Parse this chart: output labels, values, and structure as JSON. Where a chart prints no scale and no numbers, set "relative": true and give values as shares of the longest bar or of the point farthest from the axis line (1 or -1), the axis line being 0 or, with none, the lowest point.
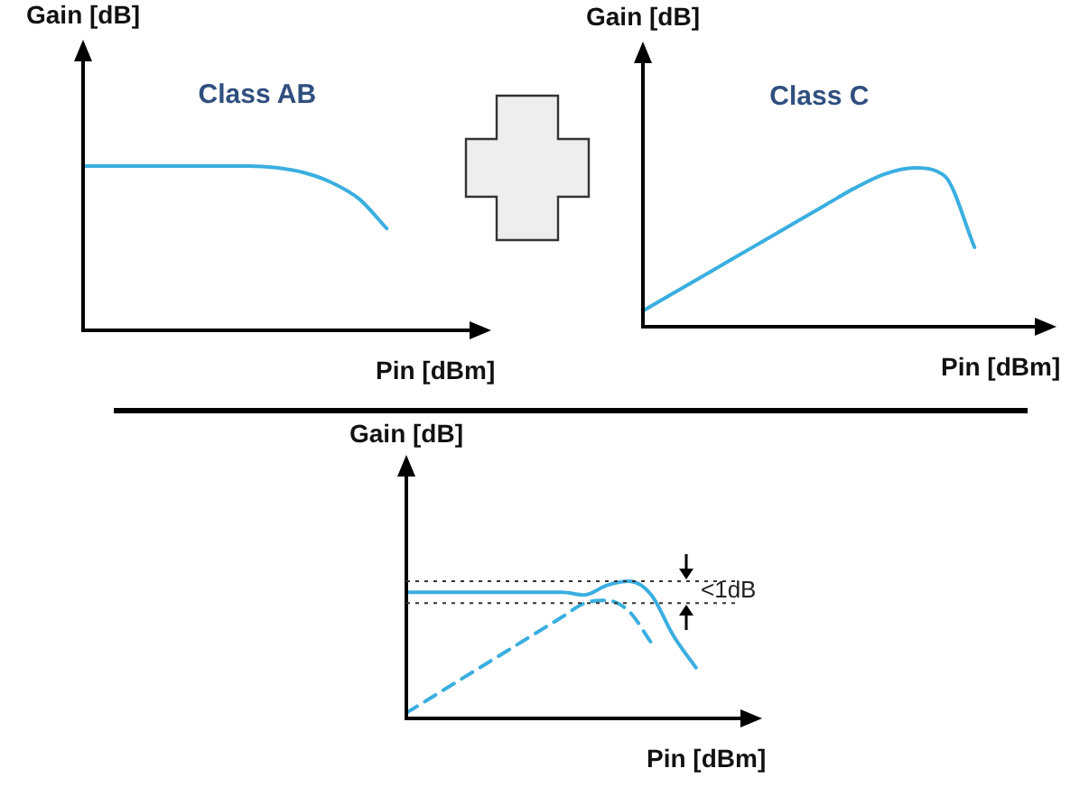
{
  "chart_data": [
    {
      "type": "line",
      "relative": true,
      "xlabel": "Pin [dBm]",
      "ylabel": "Gain [dB]",
      "annotations": [
        "Class AB"
      ],
      "legend": false,
      "grid": false,
      "marker": "none",
      "categories": [
        null,
        null,
        null,
        null,
        null,
        null,
        null,
        null,
        null,
        null,
        null,
        null,
        null,
        null,
        null
      ],
      "series": [
        {
          "color": "#3aaee0",
          "line_style": "solid",
          "values": [
            1,
            1,
            1,
            1,
            1,
            1,
            1,
            0.99,
            0.96,
            0.9,
            0.8,
            0.62,
            null,
            null,
            null
          ]
        }
      ]
    },
    {
      "type": "line",
      "relative": true,
      "xlabel": "Pin [dBm]",
      "ylabel": "Gain [dB]",
      "annotations": [
        "Class C"
      ],
      "legend": false,
      "grid": false,
      "marker": "none",
      "categories": [
        null,
        null,
        null,
        null,
        null,
        null,
        null,
        null,
        null,
        null,
        null,
        null,
        null,
        null
      ],
      "series": [
        {
          "color": "#3aaee0",
          "line_style": "solid",
          "values": [
            0.1,
            0.21,
            0.32,
            0.43,
            0.54,
            0.65,
            0.76,
            0.87,
            0.96,
            1,
            0.95,
            0.5,
            null,
            null
          ]
        }
      ]
    },
    {
      "type": "line",
      "relative": true,
      "xlabel": "Pin [dBm]",
      "ylabel": "Gain [dB]",
      "annotations": [
        "<1dB"
      ],
      "legend": false,
      "grid": false,
      "marker": "none",
      "categories": [
        null,
        null,
        null,
        null,
        null,
        null,
        null,
        null,
        null,
        null,
        null,
        null,
        null,
        null,
        null,
        null
      ],
      "ref_lines": [
        {
          "axis": "y",
          "value": 1,
          "color": "#333333",
          "line_style": "dotted"
        },
        {
          "axis": "y",
          "value": 0.84,
          "color": "#333333",
          "line_style": "dotted"
        }
      ],
      "series": [
        {
          "color": "#3aaee0",
          "line_style": "solid",
          "values": [
            0.92,
            0.92,
            0.92,
            0.92,
            0.92,
            0.92,
            0.92,
            0.92,
            0.9,
            0.97,
            1,
            0.9,
            0.6,
            0.37,
            null,
            null
          ]
        },
        {
          "color": "#3aaee0",
          "line_style": "dashed",
          "values": [
            0.04,
            0.14,
            0.24,
            0.34,
            0.44,
            0.54,
            0.64,
            0.74,
            0.84,
            0.86,
            0.78,
            0.55,
            null,
            null,
            null,
            null
          ]
        }
      ]
    }
  ]
}
